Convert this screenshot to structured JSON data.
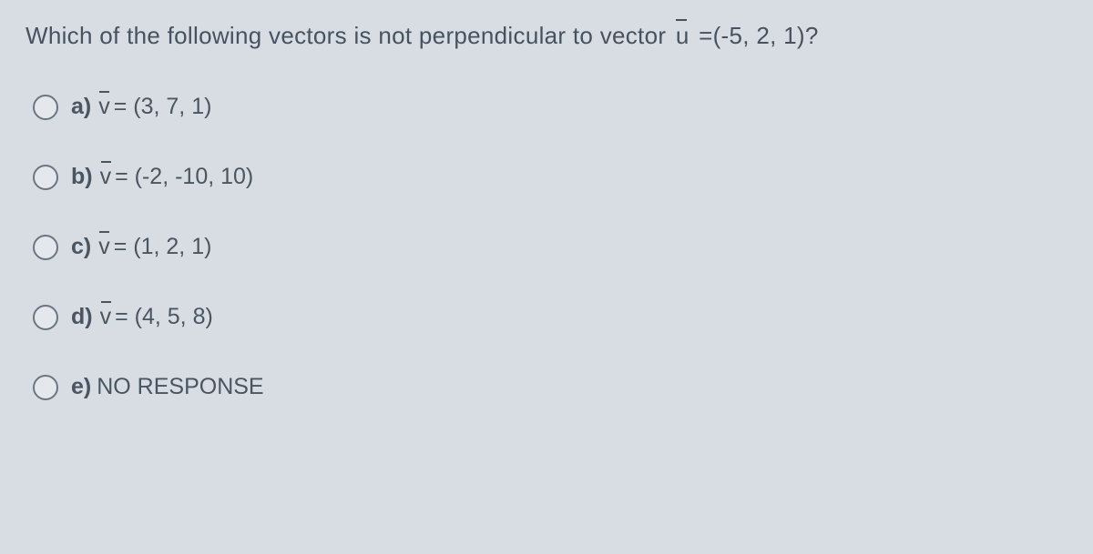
{
  "question": {
    "prefix": "Which of the following vectors is not perpendicular to vector ",
    "vector_symbol": "u",
    "suffix": " =(-5, 2, 1)?"
  },
  "options": [
    {
      "letter": "a)",
      "vector_symbol": "v",
      "value": " = (3, 7, 1)"
    },
    {
      "letter": "b)",
      "vector_symbol": "v",
      "value": " = (-2, -10, 10)"
    },
    {
      "letter": "c)",
      "vector_symbol": "v",
      "value": " = (1, 2, 1)"
    },
    {
      "letter": "d)",
      "vector_symbol": "v",
      "value": " = (4, 5, 8)"
    },
    {
      "letter": "e)",
      "vector_symbol": "",
      "value": "NO RESPONSE"
    }
  ],
  "colors": {
    "background": "#d8dde3",
    "text": "#465260",
    "option_text": "#4a5562",
    "radio_border": "#6b7682"
  },
  "typography": {
    "question_fontsize": 26,
    "option_fontsize": 25,
    "font_family": "Arial"
  }
}
